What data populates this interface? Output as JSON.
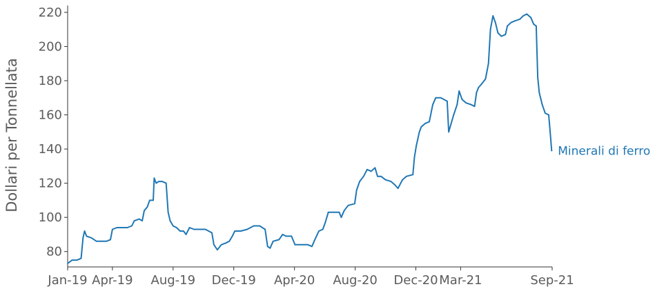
{
  "chart_data": {
    "type": "line",
    "title": "",
    "xlabel": "",
    "ylabel": "Dollari per Tonnellata",
    "ylim": [
      71,
      224
    ],
    "xlim": [
      "2019-01-01",
      "2021-09-01"
    ],
    "yticks": [
      80,
      100,
      120,
      140,
      160,
      180,
      200,
      220
    ],
    "xticks": [
      {
        "label": "Jan-19",
        "date": "2019-01-01"
      },
      {
        "label": "Apr-19",
        "date": "2019-04-01"
      },
      {
        "label": "Aug-19",
        "date": "2019-08-01"
      },
      {
        "label": "Dec-19",
        "date": "2019-12-01"
      },
      {
        "label": "Apr-20",
        "date": "2020-04-01"
      },
      {
        "label": "Aug-20",
        "date": "2020-08-01"
      },
      {
        "label": "Dec-20",
        "date": "2020-12-01"
      },
      {
        "label": "Mar-21",
        "date": "2021-03-01"
      },
      {
        "label": "Sep-21",
        "date": "2021-09-01"
      }
    ],
    "grid": false,
    "legend": "inline-right",
    "series": [
      {
        "name": "Minerali di ferro",
        "color": "#1f77b4",
        "points": [
          [
            "2019-01-01",
            73
          ],
          [
            "2019-01-10",
            75
          ],
          [
            "2019-01-20",
            75
          ],
          [
            "2019-01-28",
            76
          ],
          [
            "2019-02-01",
            88
          ],
          [
            "2019-02-04",
            92
          ],
          [
            "2019-02-08",
            89
          ],
          [
            "2019-02-18",
            88
          ],
          [
            "2019-02-28",
            86
          ],
          [
            "2019-03-10",
            86
          ],
          [
            "2019-03-20",
            86
          ],
          [
            "2019-03-28",
            87
          ],
          [
            "2019-04-01",
            93
          ],
          [
            "2019-04-10",
            94
          ],
          [
            "2019-04-20",
            94
          ],
          [
            "2019-05-01",
            94
          ],
          [
            "2019-05-10",
            95
          ],
          [
            "2019-05-15",
            98
          ],
          [
            "2019-05-25",
            99
          ],
          [
            "2019-05-31",
            98
          ],
          [
            "2019-06-04",
            104
          ],
          [
            "2019-06-10",
            106
          ],
          [
            "2019-06-15",
            110
          ],
          [
            "2019-06-22",
            110
          ],
          [
            "2019-06-24",
            123
          ],
          [
            "2019-06-28",
            120
          ],
          [
            "2019-07-03",
            121
          ],
          [
            "2019-07-10",
            121
          ],
          [
            "2019-07-18",
            120
          ],
          [
            "2019-07-22",
            103
          ],
          [
            "2019-07-26",
            98
          ],
          [
            "2019-08-01",
            95
          ],
          [
            "2019-08-08",
            94
          ],
          [
            "2019-08-15",
            92
          ],
          [
            "2019-08-22",
            92
          ],
          [
            "2019-08-27",
            90
          ],
          [
            "2019-09-03",
            94
          ],
          [
            "2019-09-12",
            93
          ],
          [
            "2019-09-25",
            93
          ],
          [
            "2019-10-05",
            93
          ],
          [
            "2019-10-18",
            91
          ],
          [
            "2019-10-22",
            84
          ],
          [
            "2019-10-29",
            81
          ],
          [
            "2019-11-06",
            84
          ],
          [
            "2019-11-15",
            85
          ],
          [
            "2019-11-22",
            86
          ],
          [
            "2019-11-28",
            89
          ],
          [
            "2019-12-03",
            92
          ],
          [
            "2019-12-15",
            92
          ],
          [
            "2019-12-28",
            93
          ],
          [
            "2020-01-10",
            95
          ],
          [
            "2020-01-22",
            95
          ],
          [
            "2020-02-02",
            93
          ],
          [
            "2020-02-07",
            83
          ],
          [
            "2020-02-12",
            82
          ],
          [
            "2020-02-18",
            86
          ],
          [
            "2020-03-01",
            87
          ],
          [
            "2020-03-08",
            90
          ],
          [
            "2020-03-15",
            89
          ],
          [
            "2020-03-26",
            89
          ],
          [
            "2020-04-02",
            84
          ],
          [
            "2020-04-15",
            84
          ],
          [
            "2020-04-28",
            84
          ],
          [
            "2020-05-06",
            83
          ],
          [
            "2020-05-12",
            87
          ],
          [
            "2020-05-20",
            92
          ],
          [
            "2020-05-28",
            93
          ],
          [
            "2020-06-02",
            97
          ],
          [
            "2020-06-08",
            103
          ],
          [
            "2020-06-20",
            103
          ],
          [
            "2020-06-30",
            103
          ],
          [
            "2020-07-04",
            100
          ],
          [
            "2020-07-10",
            104
          ],
          [
            "2020-07-18",
            107
          ],
          [
            "2020-07-31",
            108
          ],
          [
            "2020-08-04",
            116
          ],
          [
            "2020-08-10",
            121
          ],
          [
            "2020-08-18",
            124
          ],
          [
            "2020-08-25",
            128
          ],
          [
            "2020-09-02",
            127
          ],
          [
            "2020-09-10",
            129
          ],
          [
            "2020-09-15",
            124
          ],
          [
            "2020-09-22",
            124
          ],
          [
            "2020-10-01",
            122
          ],
          [
            "2020-10-12",
            121
          ],
          [
            "2020-10-20",
            119
          ],
          [
            "2020-10-26",
            117
          ],
          [
            "2020-11-04",
            122
          ],
          [
            "2020-11-12",
            124
          ],
          [
            "2020-11-25",
            125
          ],
          [
            "2020-11-28",
            135
          ],
          [
            "2020-12-02",
            142
          ],
          [
            "2020-12-08",
            150
          ],
          [
            "2020-12-12",
            153
          ],
          [
            "2020-12-20",
            155
          ],
          [
            "2020-12-28",
            156
          ],
          [
            "2021-01-04",
            166
          ],
          [
            "2021-01-10",
            170
          ],
          [
            "2021-01-20",
            170
          ],
          [
            "2021-02-02",
            168
          ],
          [
            "2021-02-05",
            150
          ],
          [
            "2021-02-10",
            155
          ],
          [
            "2021-02-15",
            160
          ],
          [
            "2021-02-22",
            166
          ],
          [
            "2021-02-26",
            174
          ],
          [
            "2021-03-04",
            169
          ],
          [
            "2021-03-12",
            167
          ],
          [
            "2021-03-22",
            166
          ],
          [
            "2021-03-29",
            165
          ],
          [
            "2021-04-02",
            173
          ],
          [
            "2021-04-06",
            176
          ],
          [
            "2021-04-12",
            178
          ],
          [
            "2021-04-20",
            181
          ],
          [
            "2021-04-26",
            190
          ],
          [
            "2021-04-30",
            210
          ],
          [
            "2021-05-05",
            218
          ],
          [
            "2021-05-10",
            214
          ],
          [
            "2021-05-15",
            208
          ],
          [
            "2021-05-22",
            206
          ],
          [
            "2021-05-30",
            207
          ],
          [
            "2021-06-03",
            212
          ],
          [
            "2021-06-10",
            214
          ],
          [
            "2021-06-18",
            215
          ],
          [
            "2021-06-28",
            216
          ],
          [
            "2021-07-05",
            218
          ],
          [
            "2021-07-12",
            219
          ],
          [
            "2021-07-20",
            217
          ],
          [
            "2021-07-26",
            213
          ],
          [
            "2021-07-31",
            212
          ],
          [
            "2021-08-03",
            182
          ],
          [
            "2021-08-06",
            173
          ],
          [
            "2021-08-12",
            166
          ],
          [
            "2021-08-18",
            161
          ],
          [
            "2021-08-25",
            160
          ],
          [
            "2021-08-28",
            150
          ],
          [
            "2021-08-31",
            139
          ]
        ]
      }
    ]
  }
}
